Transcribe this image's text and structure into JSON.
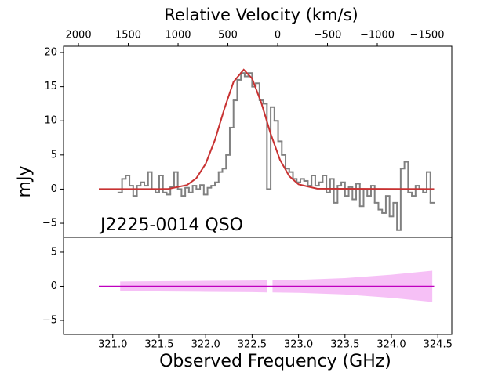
{
  "chart_data": [
    {
      "type": "line",
      "title": "J2225-0014 QSO",
      "x2label": "Relative Velocity (km/s)",
      "ylabel": "mJy",
      "xlim": [
        320.47,
        324.65
      ],
      "ylim": [
        -7.06,
        20.92
      ],
      "yticks": [
        {
          "value": -5,
          "label": "−5"
        },
        0,
        5,
        10,
        15,
        20
      ],
      "x2lim": [
        2150,
        -1748
      ],
      "x2ticks": [
        2000,
        1500,
        1000,
        500,
        0,
        {
          "value": -500,
          "label": "−500"
        },
        {
          "value": -1000,
          "label": "−1000"
        },
        {
          "value": -1500,
          "label": "−1500"
        }
      ],
      "series": [
        {
          "style": "steps",
          "color": "#808080",
          "x": [
            321.08,
            321.12,
            321.16,
            321.2,
            321.24,
            321.28,
            321.32,
            321.36,
            321.4,
            321.44,
            321.48,
            321.52,
            321.56,
            321.6,
            321.64,
            321.68,
            321.72,
            321.76,
            321.8,
            321.84,
            321.88,
            321.92,
            321.96,
            322.0,
            322.04,
            322.08,
            322.12,
            322.16,
            322.2,
            322.24,
            322.28,
            322.32,
            322.36,
            322.4,
            322.44,
            322.48,
            322.52,
            322.56,
            322.6,
            322.64,
            322.68,
            322.72,
            322.76,
            322.8,
            322.84,
            322.88,
            322.92,
            322.96,
            323.0,
            323.04,
            323.08,
            323.12,
            323.16,
            323.2,
            323.24,
            323.28,
            323.32,
            323.36,
            323.4,
            323.44,
            323.48,
            323.52,
            323.56,
            323.6,
            323.64,
            323.68,
            323.72,
            323.76,
            323.8,
            323.84,
            323.88,
            323.92,
            323.96,
            324.0,
            324.04,
            324.08,
            324.12,
            324.16,
            324.2,
            324.24,
            324.28,
            324.32,
            324.36,
            324.4,
            324.44
          ],
          "values": [
            -0.5,
            1.5,
            2,
            0.5,
            -1,
            0.5,
            1,
            0.5,
            2.5,
            0,
            -0.5,
            2,
            -0.5,
            -0.8,
            0.3,
            2.5,
            0,
            -1,
            0.2,
            -0.5,
            0.5,
            0,
            0.6,
            -0.8,
            0.2,
            0.5,
            1,
            2.5,
            3,
            5,
            9,
            13,
            16,
            17,
            16.5,
            17,
            15,
            15.5,
            13,
            12.5,
            0,
            12,
            10,
            7,
            5,
            3,
            2.5,
            1.5,
            1,
            1.5,
            1.2,
            0.5,
            2,
            0.5,
            1,
            2,
            -0.5,
            1.5,
            -2,
            0.5,
            1,
            -1,
            0.3,
            -1.5,
            0.8,
            -2.5,
            0,
            -1,
            0.5,
            -2,
            -3,
            -3.5,
            -1,
            -4,
            -2,
            -6,
            3,
            4,
            -0.5,
            -1,
            0.5,
            0,
            -0.5,
            2.5,
            -2
          ]
        },
        {
          "style": "line",
          "color": "#c83232",
          "x": [
            320.85,
            321.5,
            321.6,
            321.8,
            321.9,
            322.0,
            322.1,
            322.2,
            322.3,
            322.41,
            322.5,
            322.6,
            322.7,
            322.8,
            322.9,
            323.0,
            323.2,
            324.46
          ],
          "values": [
            0,
            0,
            0.04,
            0.6,
            1.6,
            3.7,
            7.2,
            11.7,
            15.7,
            17.5,
            16.2,
            12.6,
            8.1,
            4.3,
            1.9,
            0.7,
            0.06,
            0
          ]
        }
      ]
    },
    {
      "type": "area",
      "xlabel": "Observed Frequency (GHz)",
      "xlim": [
        320.47,
        324.65
      ],
      "xticks": [
        {
          "value": 321,
          "label": "321.0"
        },
        321.5,
        {
          "value": 322,
          "label": "322.0"
        },
        322.5,
        {
          "value": 323,
          "label": "323.0"
        },
        323.5,
        {
          "value": 324,
          "label": "324.0"
        },
        324.5
      ],
      "ylim": [
        -7.07,
        7.18
      ],
      "yticks": [
        {
          "value": -5,
          "label": "−5"
        },
        0,
        5
      ],
      "series": [
        {
          "style": "band",
          "color": "#ee82ee",
          "x": [
            321.08,
            321.5,
            322.0,
            322.5,
            322.66,
            null,
            322.72,
            323.0,
            323.5,
            324.0,
            324.44
          ],
          "values": [
            0.7,
            0.75,
            0.8,
            0.85,
            0.9,
            null,
            0.9,
            0.95,
            1.2,
            1.7,
            2.3
          ]
        },
        {
          "style": "line",
          "color": "#bf00bf",
          "x": [
            320.85,
            324.46
          ],
          "values": [
            0,
            0
          ]
        }
      ]
    }
  ]
}
